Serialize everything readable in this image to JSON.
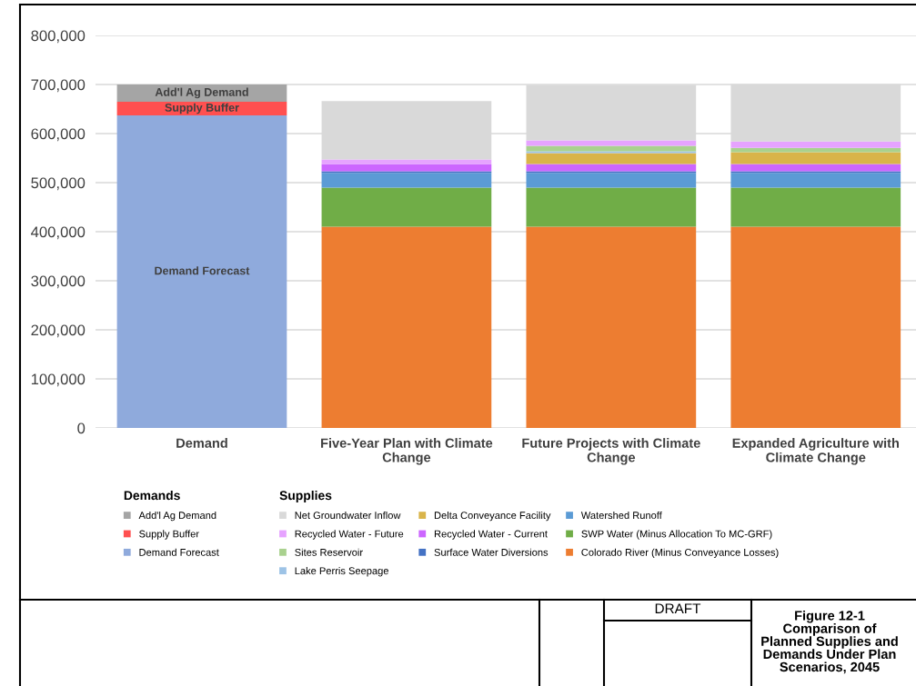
{
  "chart_data": {
    "type": "bar",
    "stacked": true,
    "categories": [
      "Demand",
      "Five-Year Plan with Climate\nChange",
      "Future Projects with Climate\nChange",
      "Expanded Agriculture with\nClimate Change"
    ],
    "series": [
      {
        "name": "Demand Forecast",
        "color": "#8faadc",
        "values": [
          637000,
          null,
          null,
          null
        ],
        "value_labels": [
          "Demand Forecast",
          null,
          null,
          null
        ]
      },
      {
        "name": "Supply Buffer",
        "color": "#ff5050",
        "values": [
          28000,
          null,
          null,
          null
        ],
        "value_labels": [
          "Supply Buffer",
          null,
          null,
          null
        ]
      },
      {
        "name": "Add'l Ag Demand",
        "color": "#a5a5a5",
        "values": [
          35000,
          null,
          null,
          null
        ],
        "value_labels": [
          "Add'l Ag Demand",
          null,
          null,
          null
        ]
      },
      {
        "name": "Colorado River (Minus Conveyance Losses)",
        "color": "#ed7d31",
        "values": [
          null,
          410000,
          410000,
          410000
        ]
      },
      {
        "name": "SWP Water (Minus Allocation To MC-GRF)",
        "color": "#70ad47",
        "values": [
          null,
          80000,
          80000,
          80000
        ]
      },
      {
        "name": "Watershed Runoff",
        "color": "#5b9bd5",
        "values": [
          null,
          30000,
          30000,
          30000
        ]
      },
      {
        "name": "Surface Water Diversions",
        "color": "#4472c4",
        "values": [
          null,
          3000,
          3000,
          3000
        ]
      },
      {
        "name": "Recycled Water - Current",
        "color": "#cc66ff",
        "values": [
          null,
          15000,
          15000,
          15000
        ]
      },
      {
        "name": "Delta Conveyance Facility",
        "color": "#d9b44a",
        "values": [
          null,
          0,
          22000,
          24000
        ]
      },
      {
        "name": "Lake Perris Seepage",
        "color": "#9dc3e6",
        "values": [
          null,
          0,
          4000,
          0
        ]
      },
      {
        "name": "Sites Reservoir",
        "color": "#a9d18e",
        "values": [
          null,
          0,
          11000,
          9000
        ]
      },
      {
        "name": "Recycled Water - Future",
        "color": "#e6a3ff",
        "values": [
          null,
          9000,
          11000,
          13000
        ]
      },
      {
        "name": "Net Groundwater Inflow",
        "color": "#d9d9d9",
        "values": [
          null,
          119000,
          113000,
          117000
        ]
      }
    ],
    "ylim": [
      0,
      800000
    ],
    "yticks": [
      {
        "value": 0,
        "label": "0"
      },
      {
        "value": 100000,
        "label": "100,000"
      },
      {
        "value": 200000,
        "label": "200,000"
      },
      {
        "value": 300000,
        "label": "300,000"
      },
      {
        "value": 400000,
        "label": "400,000"
      },
      {
        "value": 500000,
        "label": "500,000"
      },
      {
        "value": 600000,
        "label": "600,000"
      },
      {
        "value": 700000,
        "label": "700,000"
      },
      {
        "value": 800000,
        "label": "800,000"
      }
    ],
    "grid": "y",
    "legend": "bottom",
    "legend_title": [
      "Demands",
      "Supplies"
    ],
    "annotations": [
      "DRAFT",
      "Figure 12-1\nComparison of\nPlanned Supplies and\nDemands Under Plan\nScenarios, 2045"
    ]
  }
}
